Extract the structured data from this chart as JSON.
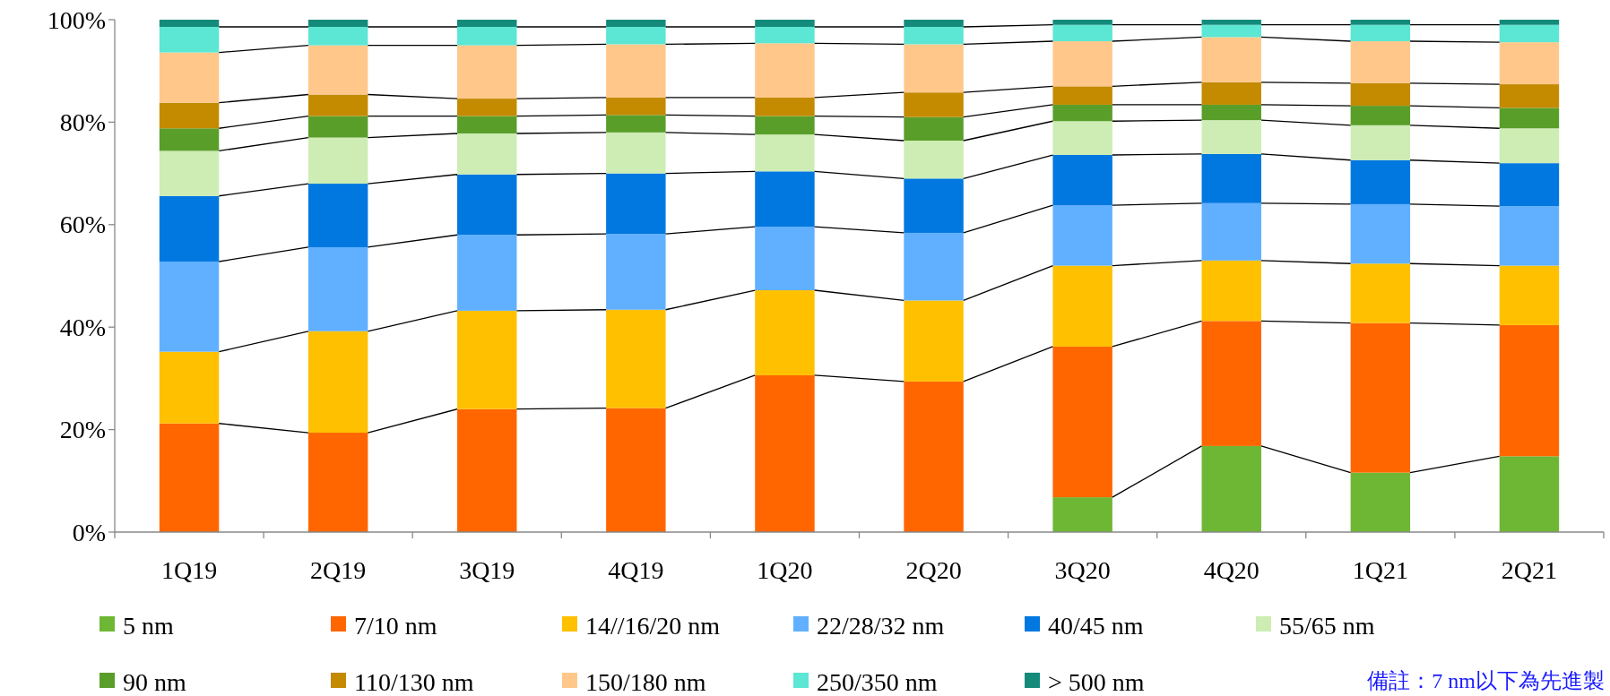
{
  "chart_data": {
    "type": "bar",
    "stacked": true,
    "categories": [
      "1Q19",
      "2Q19",
      "3Q19",
      "4Q19",
      "1Q20",
      "2Q20",
      "3Q20",
      "4Q20",
      "1Q21",
      "2Q21"
    ],
    "ylim": [
      0,
      100
    ],
    "yticks": [
      {
        "value": 0,
        "label": "0%"
      },
      {
        "value": 20,
        "label": "20%"
      },
      {
        "value": 40,
        "label": "40%"
      },
      {
        "value": 60,
        "label": "60%"
      },
      {
        "value": 80,
        "label": "80%"
      },
      {
        "value": 100,
        "label": "100%"
      }
    ],
    "grid": false,
    "legend": "bottom",
    "series": [
      {
        "name": "5 nm",
        "color": "#6eb734",
        "values": [
          0,
          0,
          0,
          0,
          0,
          0,
          6.8,
          16.8,
          11.6,
          14.8
        ]
      },
      {
        "name": "7/10 nm",
        "color": "#ff6600",
        "values": [
          21.2,
          19.4,
          24,
          24.2,
          30.6,
          29.4,
          29.4,
          24.4,
          29.2,
          25.6
        ]
      },
      {
        "name": "14//16/20 nm",
        "color": "#ffc000",
        "values": [
          14,
          19.8,
          19.2,
          19.2,
          16.6,
          15.8,
          15.8,
          11.8,
          11.6,
          11.6
        ]
      },
      {
        "name": "22/28/32 nm",
        "color": "#61b0ff",
        "values": [
          17.6,
          16.4,
          14.8,
          14.8,
          12.4,
          13.2,
          11.8,
          11.2,
          11.6,
          11.6
        ]
      },
      {
        "name": "40/45 nm",
        "color": "#0078e0",
        "values": [
          12.8,
          12.4,
          11.8,
          11.8,
          10.8,
          10.6,
          9.8,
          9.6,
          8.6,
          8.4
        ]
      },
      {
        "name": "55/65 nm",
        "color": "#cdedb4",
        "values": [
          8.8,
          9,
          8,
          8,
          7.2,
          7.4,
          6.6,
          6.6,
          6.8,
          6.8
        ]
      },
      {
        "name": "90 nm",
        "color": "#5a9e2a",
        "values": [
          4.4,
          4.2,
          3.4,
          3.4,
          3.6,
          4.6,
          3.2,
          3,
          3.8,
          4
        ]
      },
      {
        "name": "110/130 nm",
        "color": "#c48a00",
        "values": [
          5,
          4.2,
          3.4,
          3.4,
          3.6,
          4.8,
          3.6,
          4.4,
          4.4,
          4.6
        ]
      },
      {
        "name": "150/180 nm",
        "color": "#ffc88a",
        "values": [
          9.8,
          9.6,
          10.4,
          10.4,
          10.6,
          9.4,
          8.8,
          8.8,
          8.2,
          8.2
        ]
      },
      {
        "name": "250/350 nm",
        "color": "#5ce6d4",
        "values": [
          5,
          3.6,
          3.6,
          3.4,
          3.2,
          3.4,
          3.2,
          2.4,
          3.2,
          3.4
        ]
      },
      {
        "name": "> 500 nm",
        "color": "#148a7a",
        "values": [
          1.4,
          1.4,
          1.4,
          1.4,
          1.4,
          1.4,
          1,
          1,
          1,
          1
        ]
      }
    ],
    "annotations": [
      "備註：7 nm以下為先進製"
    ]
  }
}
